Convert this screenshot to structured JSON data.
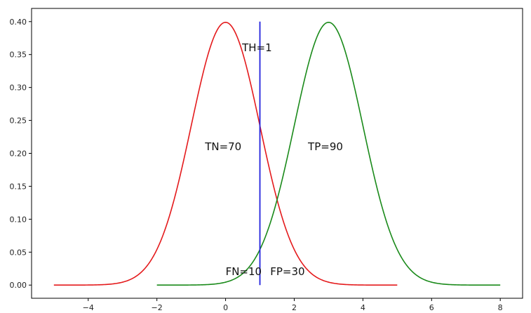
{
  "chart_data": {
    "type": "line",
    "title": "",
    "xlabel": "",
    "ylabel": "",
    "xlim": [
      -5.65,
      8.65
    ],
    "ylim": [
      -0.02,
      0.42
    ],
    "grid": false,
    "x_ticks": [
      -4,
      -2,
      0,
      2,
      4,
      6,
      8
    ],
    "x_tick_labels": [
      "−4",
      "−2",
      "0",
      "2",
      "4",
      "6",
      "8"
    ],
    "y_ticks": [
      0.0,
      0.05,
      0.1,
      0.15,
      0.2,
      0.25,
      0.3,
      0.35,
      0.4
    ],
    "y_tick_labels": [
      "0.00",
      "0.05",
      "0.10",
      "0.15",
      "0.20",
      "0.25",
      "0.30",
      "0.35",
      "0.40"
    ],
    "series": [
      {
        "color": "#e41a1c",
        "distribution": "normal",
        "mean": 0,
        "std": 1,
        "x_range": [
          -5,
          5
        ]
      },
      {
        "color": "#1a8a1a",
        "distribution": "normal",
        "mean": 3,
        "std": 1,
        "x_range": [
          -2,
          8
        ]
      }
    ],
    "threshold": {
      "x": 1,
      "y_range": [
        0.0,
        0.4
      ],
      "color": "#2222dd"
    },
    "annotations": [
      {
        "id": "th",
        "text": "TH=1",
        "x": 0.48,
        "y": 0.355
      },
      {
        "id": "tn",
        "text": "TN=70",
        "x": -0.6,
        "y": 0.205
      },
      {
        "id": "tp",
        "text": "TP=90",
        "x": 2.4,
        "y": 0.205
      },
      {
        "id": "fn",
        "text": "FN=10",
        "x": 0.0,
        "y": 0.015
      },
      {
        "id": "fp",
        "text": "FP=30",
        "x": 1.3,
        "y": 0.015
      }
    ]
  }
}
